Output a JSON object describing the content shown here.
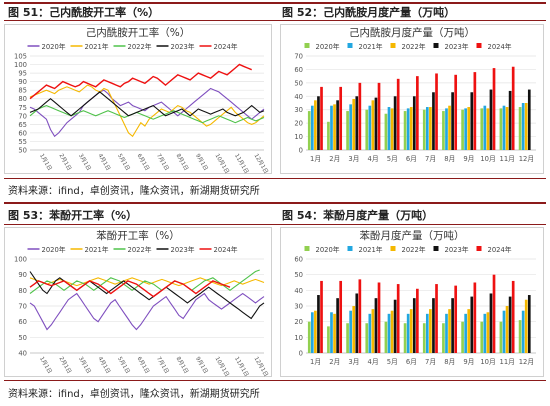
{
  "captions": {
    "fig51": "图 51：己内酰胺开工率（%）",
    "fig52": "图 52：己内酰胺月度产量（万吨）",
    "fig53": "图 53：苯酚开工率（%）",
    "fig54": "图 54：苯酚月度产量（万吨）"
  },
  "source_top": "资料来源：ifind，卓创资讯，隆众资讯，新湖期货研究所",
  "source_bottom": "资料来源：ifind，卓创资讯，隆众资讯，新湖期货研究所",
  "colors": {
    "2020年": "#7f4fbf",
    "2021年": "#f5b800",
    "2022年": "#4fc24a",
    "2023年": "#111111",
    "2024年": "#ee1111",
    "bar_2020年": "#92d050",
    "bar_2021年": "#22a7e0",
    "bar_2022年": "#f5b800",
    "bar_2023年": "#111111",
    "bar_2024年": "#ee1111"
  },
  "chart_data": [
    {
      "id": "c51",
      "type": "line",
      "title": "己内酰胺开工率（%）",
      "ylim": [
        50,
        105
      ],
      "yticks": [
        50,
        55,
        60,
        65,
        70,
        75,
        80,
        85,
        90,
        95,
        100,
        105
      ],
      "xticks": [
        "1月1日",
        "2月1日",
        "3月1日",
        "4月1日",
        "5月1日",
        "6月1日",
        "7月1日",
        "8月1日",
        "9月1日",
        "10月1日",
        "11月1日",
        "12月1日"
      ],
      "grid": true,
      "legend": "top",
      "series": [
        {
          "name": "2020年",
          "values": [
            75,
            74,
            72,
            70,
            68,
            62,
            58,
            60,
            63,
            66,
            68,
            70,
            72,
            76,
            78,
            80,
            82,
            84,
            85,
            83,
            80,
            78,
            76,
            77,
            78,
            76,
            75,
            74,
            73,
            75,
            76,
            77,
            78,
            76,
            74,
            72,
            70,
            72,
            74,
            76,
            78,
            80,
            82,
            84,
            86,
            85,
            84,
            82,
            80,
            78,
            76,
            74,
            72,
            70,
            68,
            70,
            72,
            74
          ]
        },
        {
          "name": "2021年",
          "values": [
            81,
            82,
            83,
            84,
            85,
            84,
            83,
            85,
            86,
            87,
            86,
            85,
            84,
            86,
            88,
            87,
            85,
            84,
            86,
            85,
            80,
            75,
            70,
            65,
            60,
            58,
            62,
            66,
            64,
            68,
            70,
            72,
            74,
            73,
            72,
            74,
            76,
            75,
            73,
            72,
            70,
            68,
            66,
            64,
            65,
            67,
            69,
            71,
            73,
            75,
            72,
            70,
            68,
            66,
            65,
            66,
            68,
            70
          ]
        },
        {
          "name": "2022年",
          "values": [
            70,
            72,
            74,
            75,
            76,
            75,
            74,
            73,
            72,
            71,
            70,
            71,
            72,
            73,
            72,
            71,
            70,
            71,
            72,
            73,
            72,
            71,
            70,
            69,
            70,
            71,
            72,
            71,
            70,
            69,
            68,
            69,
            70,
            71,
            72,
            73,
            72,
            71,
            70,
            69,
            68,
            67,
            66,
            67,
            68,
            69,
            70,
            69,
            68,
            67,
            66,
            67,
            68,
            69,
            68,
            67,
            68,
            69
          ]
        },
        {
          "name": "2023年",
          "values": [
            72,
            73,
            74,
            76,
            78,
            80,
            78,
            76,
            74,
            72,
            70,
            72,
            74,
            76,
            78,
            80,
            82,
            84,
            82,
            80,
            78,
            76,
            74,
            72,
            70,
            71,
            72,
            73,
            74,
            75,
            76,
            74,
            72,
            70,
            71,
            72,
            73,
            74,
            72,
            70,
            72,
            74,
            73,
            72,
            71,
            72,
            73,
            74,
            72,
            71,
            70,
            71,
            72,
            74,
            76,
            74,
            72,
            73
          ]
        },
        {
          "name": "2024年",
          "values": [
            80,
            82,
            84,
            86,
            88,
            87,
            86,
            88,
            90,
            89,
            88,
            87,
            88,
            90,
            89,
            88,
            87,
            89,
            91,
            90,
            89,
            88,
            87,
            89,
            90,
            92,
            91,
            90,
            89,
            91,
            93,
            92,
            90,
            88,
            90,
            92,
            94,
            93,
            92,
            91,
            93,
            95,
            94,
            93,
            92,
            94,
            96,
            95,
            94,
            96,
            98,
            100,
            99,
            98,
            97
          ]
        }
      ]
    },
    {
      "id": "c52",
      "type": "bar",
      "title": "己内酰胺月度产量（万吨）",
      "ylim": [
        0,
        70
      ],
      "yticks": [
        0,
        10,
        20,
        30,
        40,
        50,
        60,
        70
      ],
      "categories": [
        "1月",
        "2月",
        "3月",
        "4月",
        "5月",
        "6月",
        "7月",
        "8月",
        "9月",
        "10月",
        "11月",
        "12月"
      ],
      "grid": true,
      "legend": "top",
      "series": [
        {
          "name": "2020年",
          "values": [
            29,
            21,
            29,
            30,
            27,
            29,
            30,
            29,
            30,
            31,
            31,
            32
          ]
        },
        {
          "name": "2021年",
          "values": [
            33,
            33,
            34,
            33,
            32,
            31,
            32,
            31,
            31,
            33,
            33,
            35
          ]
        },
        {
          "name": "2022年",
          "values": [
            37,
            34,
            38,
            37,
            31,
            32,
            32,
            33,
            32,
            31,
            32,
            35
          ]
        },
        {
          "name": "2023年",
          "values": [
            40,
            37,
            40,
            39,
            40,
            40,
            43,
            43,
            43,
            45,
            44,
            45
          ]
        },
        {
          "name": "2024年",
          "values": [
            47,
            47,
            50,
            50,
            53,
            55,
            57,
            56,
            58,
            61,
            62,
            null
          ]
        }
      ]
    },
    {
      "id": "c53",
      "type": "line",
      "title": "苯酚开工率（%）",
      "ylim": [
        40,
        100
      ],
      "yticks": [
        40,
        50,
        60,
        70,
        80,
        90,
        100
      ],
      "xticks": [
        "1月1日",
        "2月1日",
        "3月1日",
        "4月1日",
        "5月1日",
        "6月1日",
        "7月1日",
        "8月1日",
        "9月1日",
        "10月1日",
        "11月1日",
        "12月1日"
      ],
      "grid": true,
      "legend": "top",
      "series": [
        {
          "name": "2020年",
          "values": [
            72,
            70,
            65,
            60,
            55,
            58,
            62,
            66,
            70,
            74,
            76,
            78,
            74,
            70,
            66,
            62,
            60,
            64,
            68,
            72,
            74,
            70,
            66,
            62,
            58,
            55,
            58,
            62,
            66,
            70,
            72,
            74,
            76,
            72,
            68,
            64,
            62,
            66,
            70,
            74,
            76,
            78,
            74,
            72,
            70,
            68,
            70,
            72,
            74,
            76,
            78,
            76,
            74,
            72,
            74,
            76
          ]
        },
        {
          "name": "2021年",
          "values": [
            88,
            87,
            86,
            85,
            84,
            85,
            86,
            87,
            86,
            85,
            84,
            83,
            84,
            85,
            86,
            87,
            88,
            87,
            86,
            85,
            84,
            85,
            86,
            87,
            88,
            87,
            86,
            85,
            84,
            85,
            86,
            87,
            86,
            85,
            84,
            83,
            84,
            85,
            86,
            87,
            88,
            87,
            86,
            85,
            84,
            83,
            84,
            85,
            86,
            85,
            84,
            85,
            86,
            87,
            86,
            85
          ]
        },
        {
          "name": "2022年",
          "values": [
            78,
            80,
            82,
            84,
            86,
            85,
            84,
            82,
            80,
            82,
            84,
            86,
            85,
            84,
            82,
            80,
            82,
            84,
            86,
            88,
            87,
            86,
            84,
            82,
            80,
            82,
            84,
            86,
            85,
            84,
            82,
            80,
            82,
            84,
            86,
            85,
            84,
            82,
            80,
            82,
            84,
            86,
            87,
            88,
            86,
            84,
            82,
            80,
            82,
            84,
            86,
            88,
            90,
            92,
            93
          ]
        },
        {
          "name": "2023年",
          "values": [
            92,
            88,
            84,
            80,
            78,
            82,
            86,
            88,
            86,
            84,
            82,
            80,
            82,
            84,
            86,
            84,
            82,
            80,
            78,
            80,
            82,
            84,
            86,
            84,
            82,
            80,
            78,
            76,
            74,
            76,
            78,
            80,
            82,
            80,
            78,
            76,
            74,
            72,
            74,
            76,
            78,
            80,
            82,
            80,
            78,
            76,
            74,
            72,
            70,
            68,
            66,
            64,
            62,
            66,
            70,
            72
          ]
        },
        {
          "name": "2024年",
          "values": [
            82,
            84,
            86,
            85,
            84,
            83,
            84,
            85,
            86,
            84,
            82,
            80,
            82,
            84,
            86,
            85,
            84,
            82,
            80,
            78,
            80,
            82,
            84,
            86,
            85,
            84,
            82,
            80,
            78,
            76,
            78,
            80,
            82,
            84,
            86,
            85,
            84,
            82,
            80,
            78,
            80,
            82,
            84,
            86,
            85,
            84,
            83,
            82
          ]
        }
      ]
    },
    {
      "id": "c54",
      "type": "bar",
      "title": "苯酚月度产量（万吨）",
      "ylim": [
        0,
        60
      ],
      "yticks": [
        0,
        10,
        20,
        30,
        40,
        50,
        60
      ],
      "categories": [
        "1月",
        "2月",
        "3月",
        "4月",
        "5月",
        "6月",
        "7月",
        "8月",
        "9月",
        "10月",
        "11月",
        "12月"
      ],
      "grid": true,
      "legend": "top",
      "series": [
        {
          "name": "2020年",
          "values": [
            20,
            17,
            19,
            19,
            20,
            19,
            19,
            19,
            20,
            20,
            20,
            21
          ]
        },
        {
          "name": "2021年",
          "values": [
            26,
            26,
            27,
            25,
            25,
            25,
            25,
            25,
            25,
            25,
            27,
            27
          ]
        },
        {
          "name": "2022年",
          "values": [
            27,
            25,
            30,
            28,
            27,
            28,
            28,
            28,
            28,
            26,
            30,
            34
          ]
        },
        {
          "name": "2023年",
          "values": [
            37,
            35,
            38,
            35,
            34,
            35,
            35,
            35,
            36,
            38,
            36,
            37
          ]
        },
        {
          "name": "2024年",
          "values": [
            46,
            46,
            47,
            45,
            44,
            41,
            44,
            43,
            45,
            50,
            46,
            null
          ]
        }
      ]
    }
  ]
}
